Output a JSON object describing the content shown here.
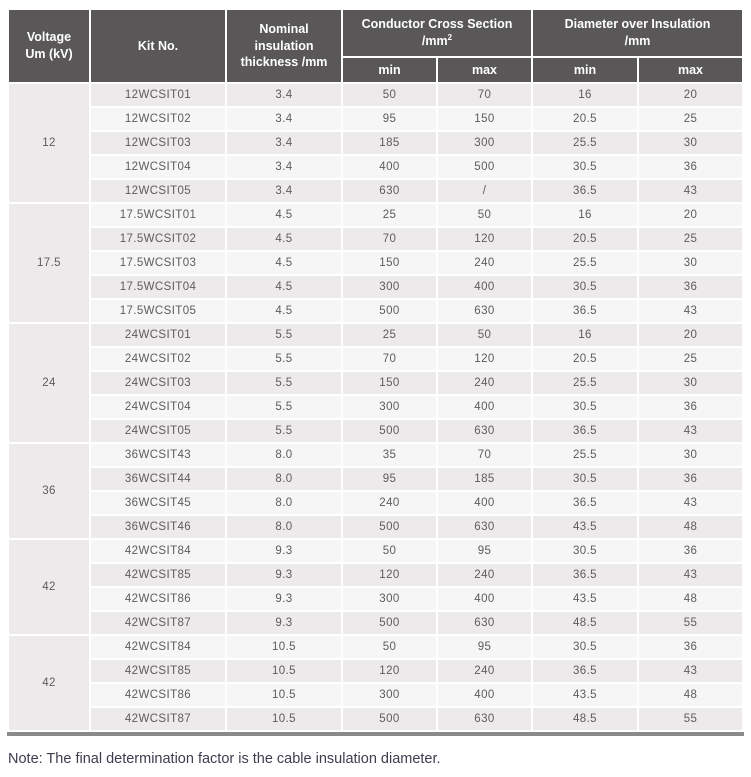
{
  "colors": {
    "header_bg": "#595757",
    "header_text": "#FFFFFF",
    "row_odd_bg": "#ECEAEA",
    "row_even_bg": "#F7F6F6",
    "voltage_cell_bg": "#ECEAEA",
    "cell_text": "#5D5B5B",
    "bottom_bar": "#8A8A8A",
    "note_text": "#3D3D4F",
    "gap": "#FFFFFF"
  },
  "table": {
    "headers": {
      "voltage": "Voltage\nUm (kV)",
      "kit_no": "Kit No.",
      "thickness": "Nominal insulation\nthickness /mm",
      "ccs_line1": "Conductor Cross Section",
      "ccs_line2": "/mm",
      "ccs_sup": "2",
      "diameter": "Diameter over Insulation\n/mm"
    },
    "subheaders": [
      "min",
      "max",
      "min",
      "max"
    ],
    "groups": [
      {
        "voltage": "12",
        "rows": [
          [
            "12WCSIT01",
            "3.4",
            "50",
            "70",
            "16",
            "20"
          ],
          [
            "12WCSIT02",
            "3.4",
            "95",
            "150",
            "20.5",
            "25"
          ],
          [
            "12WCSIT03",
            "3.4",
            "185",
            "300",
            "25.5",
            "30"
          ],
          [
            "12WCSIT04",
            "3.4",
            "400",
            "500",
            "30.5",
            "36"
          ],
          [
            "12WCSIT05",
            "3.4",
            "630",
            "/",
            "36.5",
            "43"
          ]
        ]
      },
      {
        "voltage": "17.5",
        "rows": [
          [
            "17.5WCSIT01",
            "4.5",
            "25",
            "50",
            "16",
            "20"
          ],
          [
            "17.5WCSIT02",
            "4.5",
            "70",
            "120",
            "20.5",
            "25"
          ],
          [
            "17.5WCSIT03",
            "4.5",
            "150",
            "240",
            "25.5",
            "30"
          ],
          [
            "17.5WCSIT04",
            "4.5",
            "300",
            "400",
            "30.5",
            "36"
          ],
          [
            "17.5WCSIT05",
            "4.5",
            "500",
            "630",
            "36.5",
            "43"
          ]
        ]
      },
      {
        "voltage": "24",
        "rows": [
          [
            "24WCSIT01",
            "5.5",
            "25",
            "50",
            "16",
            "20"
          ],
          [
            "24WCSIT02",
            "5.5",
            "70",
            "120",
            "20.5",
            "25"
          ],
          [
            "24WCSIT03",
            "5.5",
            "150",
            "240",
            "25.5",
            "30"
          ],
          [
            "24WCSIT04",
            "5.5",
            "300",
            "400",
            "30.5",
            "36"
          ],
          [
            "24WCSIT05",
            "5.5",
            "500",
            "630",
            "36.5",
            "43"
          ]
        ]
      },
      {
        "voltage": "36",
        "rows": [
          [
            "36WCSIT43",
            "8.0",
            "35",
            "70",
            "25.5",
            "30"
          ],
          [
            "36WCSIT44",
            "8.0",
            "95",
            "185",
            "30.5",
            "36"
          ],
          [
            "36WCSIT45",
            "8.0",
            "240",
            "400",
            "36.5",
            "43"
          ],
          [
            "36WCSIT46",
            "8.0",
            "500",
            "630",
            "43.5",
            "48"
          ]
        ]
      },
      {
        "voltage": "42",
        "rows": [
          [
            "42WCSIT84",
            "9.3",
            "50",
            "95",
            "30.5",
            "36"
          ],
          [
            "42WCSIT85",
            "9.3",
            "120",
            "240",
            "36.5",
            "43"
          ],
          [
            "42WCSIT86",
            "9.3",
            "300",
            "400",
            "43.5",
            "48"
          ],
          [
            "42WCSIT87",
            "9.3",
            "500",
            "630",
            "48.5",
            "55"
          ]
        ]
      },
      {
        "voltage": "42",
        "rows": [
          [
            "42WCSIT84",
            "10.5",
            "50",
            "95",
            "30.5",
            "36"
          ],
          [
            "42WCSIT85",
            "10.5",
            "120",
            "240",
            "36.5",
            "43"
          ],
          [
            "42WCSIT86",
            "10.5",
            "300",
            "400",
            "43.5",
            "48"
          ],
          [
            "42WCSIT87",
            "10.5",
            "500",
            "630",
            "48.5",
            "55"
          ]
        ]
      }
    ]
  },
  "note": "Note: The final determination factor is the cable insulation diameter."
}
